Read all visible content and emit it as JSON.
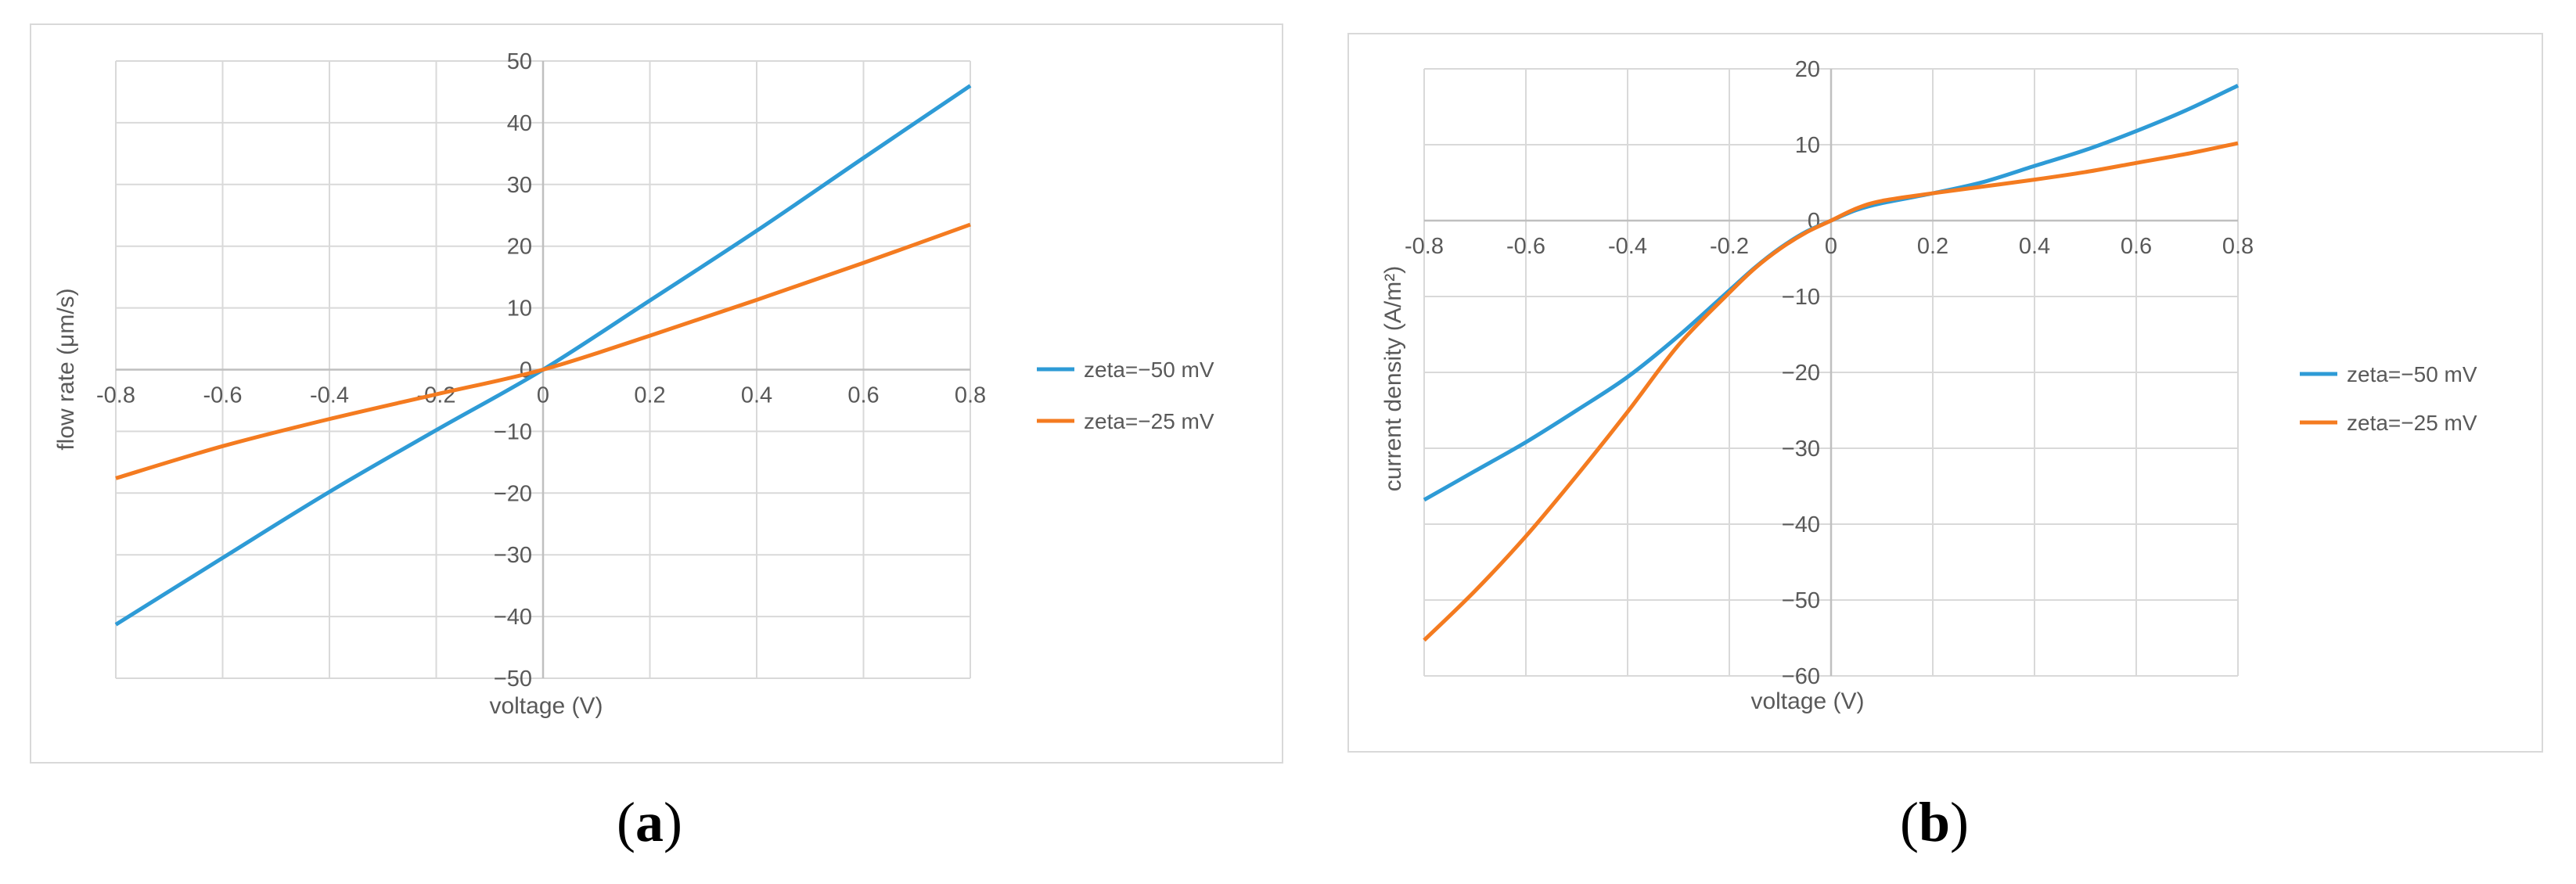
{
  "chart_data": [
    {
      "type": "line",
      "panel_label": "a",
      "xlabel": "voltage (V)",
      "ylabel": "flow rate (μm/s)",
      "xlim": [
        -0.8,
        0.8
      ],
      "ylim": [
        -50,
        50
      ],
      "x_ticks": [
        -0.8,
        -0.6,
        -0.4,
        -0.2,
        0,
        0.2,
        0.4,
        0.6,
        0.8
      ],
      "x_tick_labels": [
        "-0.8",
        "-0.6",
        "-0.4",
        "-0.2",
        "0",
        "0.2",
        "0.4",
        "0.6",
        "0.8"
      ],
      "y_ticks": [
        50,
        40,
        30,
        20,
        10,
        0,
        -10,
        -20,
        -30,
        -40,
        -50
      ],
      "y_tick_labels": [
        "50",
        "40",
        "30",
        "20",
        "10",
        "0",
        "−10",
        "−20",
        "−30",
        "−40",
        "−50"
      ],
      "grid": true,
      "legend_position": "right",
      "colors": {
        "series1": "#2e9bd6",
        "series2": "#f47b20",
        "grid": "#d9d9d9",
        "axis": "#bfbfbf"
      },
      "series": [
        {
          "name": "zeta=−50 mV",
          "x": [
            -0.8,
            -0.6,
            -0.4,
            -0.2,
            0,
            0.2,
            0.4,
            0.6,
            0.8
          ],
          "values": [
            -41.3,
            -30.5,
            -19.8,
            -9.8,
            0,
            11.2,
            22.5,
            34.3,
            46
          ]
        },
        {
          "name": "zeta=−25 mV",
          "x": [
            -0.8,
            -0.6,
            -0.4,
            -0.2,
            0,
            0.2,
            0.4,
            0.6,
            0.8
          ],
          "values": [
            -17.6,
            -12.4,
            -8,
            -4,
            0,
            5.5,
            11.3,
            17.3,
            23.5
          ]
        }
      ]
    },
    {
      "type": "line",
      "panel_label": "b",
      "xlabel": "voltage (V)",
      "ylabel": "current density (A/m²)",
      "xlim": [
        -0.8,
        0.8
      ],
      "ylim": [
        -60,
        20
      ],
      "x_ticks": [
        -0.8,
        -0.6,
        -0.4,
        -0.2,
        0,
        0.2,
        0.4,
        0.6,
        0.8
      ],
      "x_tick_labels": [
        "-0.8",
        "-0.6",
        "-0.4",
        "-0.2",
        "0",
        "0.2",
        "0.4",
        "0.6",
        "0.8"
      ],
      "y_ticks": [
        20,
        10,
        0,
        -10,
        -20,
        -30,
        -40,
        -50,
        -60
      ],
      "y_tick_labels": [
        "20",
        "10",
        "0",
        "−10",
        "−20",
        "−30",
        "−40",
        "−50",
        "−60"
      ],
      "grid": true,
      "legend_position": "right",
      "colors": {
        "series1": "#2e9bd6",
        "series2": "#f47b20",
        "grid": "#d9d9d9",
        "axis": "#bfbfbf"
      },
      "series": [
        {
          "name": "zeta=−50 mV",
          "x": [
            -0.8,
            -0.7,
            -0.6,
            -0.5,
            -0.4,
            -0.3,
            -0.2,
            -0.15,
            -0.1,
            -0.05,
            0,
            0.05,
            0.1,
            0.2,
            0.3,
            0.4,
            0.5,
            0.6,
            0.7,
            0.8
          ],
          "values": [
            -36.8,
            -33,
            -29.2,
            -25,
            -20.6,
            -15.2,
            -9.2,
            -6.2,
            -3.6,
            -1.5,
            0,
            1.4,
            2.3,
            3.6,
            5.1,
            7.2,
            9.3,
            11.8,
            14.6,
            17.8
          ]
        },
        {
          "name": "zeta=−25 mV",
          "x": [
            -0.8,
            -0.7,
            -0.6,
            -0.5,
            -0.4,
            -0.3,
            -0.2,
            -0.15,
            -0.1,
            -0.05,
            0,
            0.05,
            0.1,
            0.2,
            0.3,
            0.4,
            0.5,
            0.6,
            0.7,
            0.8
          ],
          "values": [
            -55.3,
            -48.8,
            -41.6,
            -33.6,
            -25.2,
            -16.4,
            -9.5,
            -6.3,
            -3.7,
            -1.6,
            0,
            1.6,
            2.6,
            3.6,
            4.5,
            5.4,
            6.4,
            7.6,
            8.8,
            10.2
          ]
        }
      ]
    }
  ],
  "captions": {
    "a": "(a)",
    "b": "(b)"
  }
}
